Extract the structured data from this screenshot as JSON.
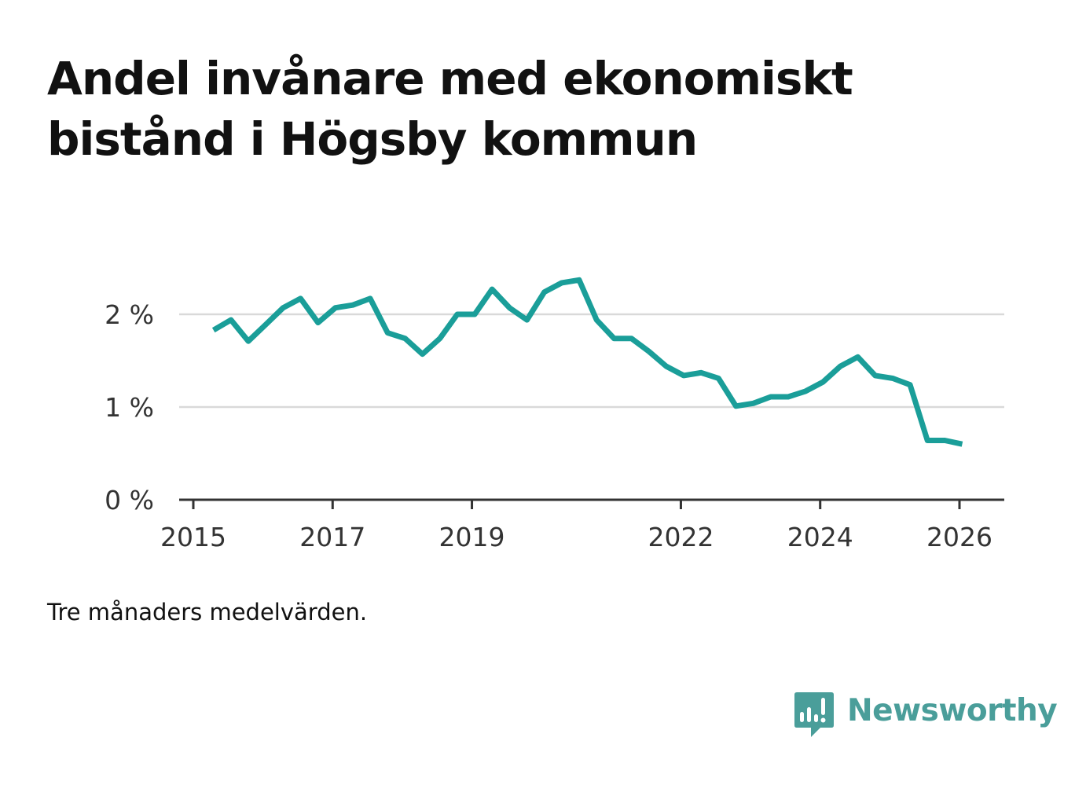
{
  "title": "Andel invånare med ekonomiskt bistånd i Högsby kommun",
  "note": "Tre månaders medelvärden.",
  "brand": {
    "name": "Newsworthy",
    "icon": "newsworthy-logo-icon"
  },
  "colors": {
    "line": "#1a9e99",
    "grid": "#d9d9d9",
    "axis": "#333333",
    "brand": "#4a9e9a"
  },
  "chart_data": {
    "type": "line",
    "title": "Andel invånare med ekonomiskt bistånd i Högsby kommun",
    "xlabel": "",
    "ylabel": "",
    "ylim": [
      0,
      2.5
    ],
    "xlim": [
      2015.0,
      2026.3
    ],
    "grid": true,
    "y_ticks": [
      0,
      1,
      2
    ],
    "y_tick_labels": [
      "0 %",
      "1 %",
      "2 %"
    ],
    "x_ticks": [
      2015,
      2017,
      2019,
      2022,
      2024,
      2026
    ],
    "x_tick_labels": [
      "2015",
      "2017",
      "2019",
      "2022",
      "2024",
      "2026"
    ],
    "series": [
      {
        "name": "Andel invånare med ekonomiskt bistånd",
        "x": [
          2015.29,
          2015.54,
          2015.79,
          2016.04,
          2016.29,
          2016.54,
          2016.79,
          2017.04,
          2017.29,
          2017.54,
          2017.79,
          2018.04,
          2018.29,
          2018.54,
          2018.79,
          2019.04,
          2019.29,
          2019.54,
          2019.79,
          2020.04,
          2020.29,
          2020.54,
          2020.79,
          2021.04,
          2021.29,
          2021.54,
          2021.79,
          2022.04,
          2022.29,
          2022.54,
          2022.79,
          2023.04,
          2023.29,
          2023.54,
          2023.79,
          2024.04,
          2024.29,
          2024.54,
          2024.79,
          2025.04,
          2025.29,
          2025.54,
          2025.79,
          2026.04
        ],
        "values": [
          1.83,
          1.94,
          1.71,
          1.89,
          2.07,
          2.17,
          1.91,
          2.07,
          2.1,
          2.17,
          1.8,
          1.74,
          1.57,
          1.74,
          2.0,
          2.0,
          2.27,
          2.07,
          1.94,
          2.24,
          2.34,
          2.37,
          1.94,
          1.74,
          1.74,
          1.6,
          1.44,
          1.34,
          1.37,
          1.31,
          1.01,
          1.04,
          1.11,
          1.11,
          1.17,
          1.27,
          1.44,
          1.54,
          1.34,
          1.31,
          1.24,
          0.64,
          0.64,
          0.6
        ]
      }
    ]
  }
}
